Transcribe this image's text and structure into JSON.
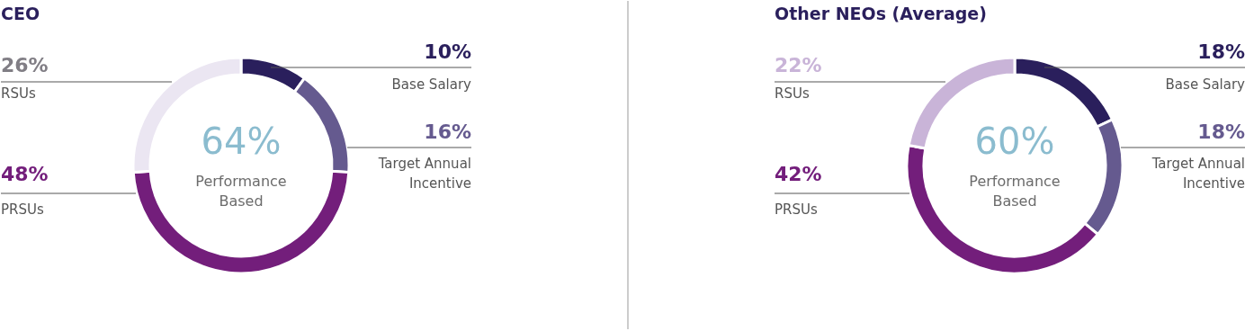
{
  "chart_data": [
    {
      "type": "donut",
      "title": "CEO",
      "categories": [
        "Base Salary",
        "Target Annual\nIncentive",
        "PRSUs",
        "RSUs"
      ],
      "values": [
        10,
        16,
        48,
        26
      ],
      "colors": [
        "#2a1f5c",
        "#655a8f",
        "#731e7b",
        "#ebe6f2"
      ],
      "value_labels": [
        "10%",
        "16%",
        "48%",
        "26%"
      ],
      "annotations": [
        "64%",
        "Performance\nBased"
      ]
    },
    {
      "type": "donut",
      "title": "Other NEOs (Average)",
      "categories": [
        "Base Salary",
        "Target Annual\nIncentive",
        "PRSUs",
        "RSUs"
      ],
      "values": [
        18,
        18,
        42,
        22
      ],
      "colors": [
        "#2a1f5c",
        "#655a8f",
        "#731e7b",
        "#c9b4d8"
      ],
      "value_labels": [
        "18%",
        "18%",
        "42%",
        "22%"
      ],
      "annotations": [
        "60%",
        "Performance\nBased"
      ]
    }
  ]
}
